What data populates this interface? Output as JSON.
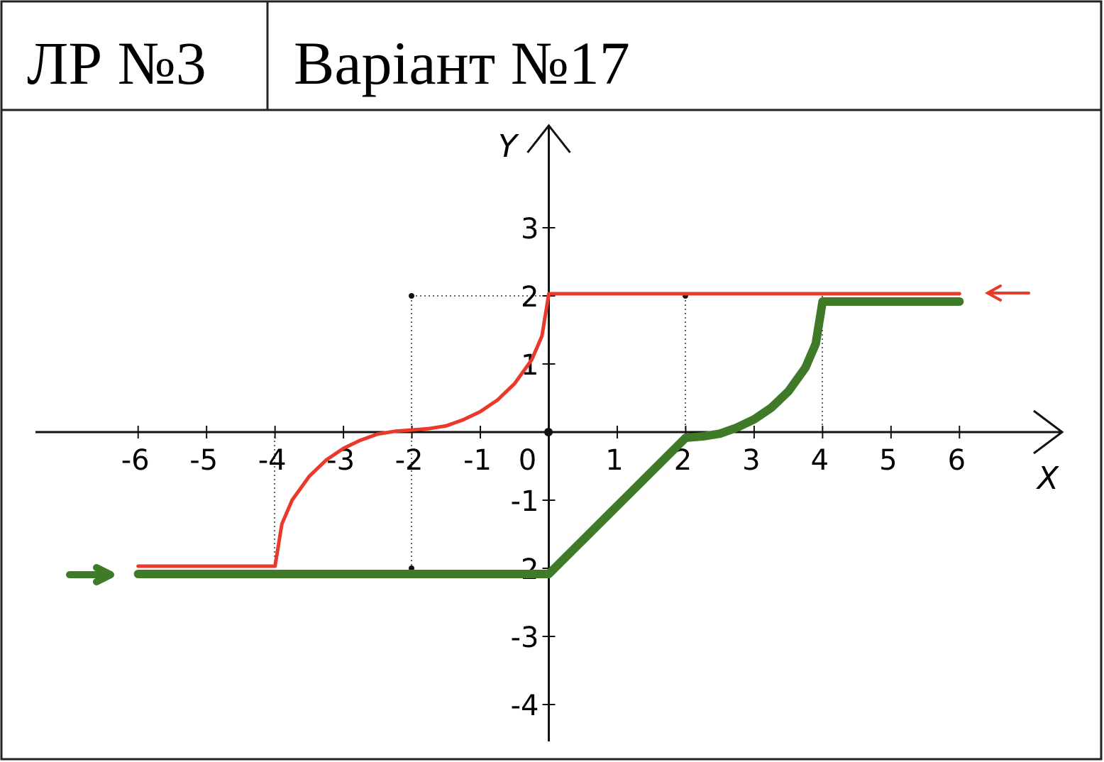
{
  "header": {
    "lab": "ЛР №3",
    "variant": "Варіант №17"
  },
  "chart_data": {
    "type": "line",
    "x_label": "X",
    "y_label": "Y",
    "xlim": [
      -7.5,
      7.5
    ],
    "ylim": [
      -4.5,
      4.5
    ],
    "xticks": [
      -6,
      -5,
      -4,
      -3,
      -2,
      -1,
      0,
      1,
      2,
      3,
      4,
      5,
      6
    ],
    "yticks": [
      -4,
      -3,
      -2,
      -1,
      1,
      2,
      3
    ],
    "series": [
      {
        "name": "red",
        "color": "#e8392a",
        "width": 5,
        "x": [
          -6,
          -4,
          -3.9,
          -3.75,
          -3.5,
          -3.25,
          -3,
          -2.75,
          -2.5,
          -2.25,
          -2,
          -1.75,
          -1.5,
          -1.25,
          -1,
          -0.75,
          -0.5,
          -0.25,
          -0.1,
          0,
          6
        ],
        "values": [
          -2,
          -2,
          -1.38,
          -1.03,
          -0.68,
          -0.44,
          -0.27,
          -0.15,
          -0.06,
          -0.02,
          0,
          0.02,
          0.06,
          0.15,
          0.27,
          0.44,
          0.68,
          1.03,
          1.38,
          2,
          2
        ]
      },
      {
        "name": "green",
        "color": "#3f7a28",
        "width": 12,
        "x": [
          -6,
          0,
          2,
          2.25,
          2.5,
          2.75,
          3,
          3.25,
          3.5,
          3.75,
          3.9,
          4,
          6
        ],
        "values": [
          -2,
          -2,
          0,
          0.02,
          0.06,
          0.15,
          0.27,
          0.44,
          0.68,
          1.03,
          1.38,
          2,
          2
        ]
      }
    ]
  }
}
